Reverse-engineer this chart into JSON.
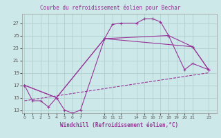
{
  "title": "Courbe du refroidissement éolien pour Bechar",
  "xlabel": "Windchill (Refroidissement éolien,°C)",
  "bg_color": "#cce8e8",
  "line_color": "#993399",
  "grid_color": "#aacccc",
  "line1_x": [
    0,
    1,
    2,
    3,
    4,
    5,
    6,
    7,
    10,
    11,
    12,
    14,
    15,
    16,
    17,
    18,
    20,
    21,
    23
  ],
  "line1_y": [
    17,
    14.5,
    14.5,
    13.5,
    15,
    13,
    12.5,
    13,
    24.5,
    26.8,
    27,
    27,
    27.7,
    27.7,
    27.2,
    25.0,
    19.5,
    20.5,
    19.5
  ],
  "line2_x": [
    0,
    4,
    10,
    18,
    21,
    23
  ],
  "line2_y": [
    17,
    15,
    24.5,
    25.0,
    23.2,
    19.5
  ],
  "line3_x": [
    0,
    4,
    10,
    21,
    23
  ],
  "line3_y": [
    17,
    15,
    24.5,
    23.2,
    19.5
  ],
  "line4_x": [
    0,
    23
  ],
  "line4_y": [
    14.5,
    19.0
  ],
  "ylim": [
    12.5,
    28.5
  ],
  "yticks": [
    13,
    15,
    17,
    19,
    21,
    23,
    25,
    27
  ],
  "xlim": [
    -0.3,
    24.0
  ],
  "xtick_positions": [
    0,
    1,
    2,
    3,
    4,
    5,
    6,
    7,
    10,
    11,
    12,
    14,
    15,
    16,
    17,
    18,
    19,
    20,
    21,
    23
  ],
  "xtick_labels": [
    "0",
    "1",
    "2",
    "3",
    "4",
    "5",
    "6",
    "7",
    "10",
    "11",
    "12",
    "14",
    "15",
    "16",
    "17",
    "18",
    "19",
    "20",
    "21",
    "23"
  ]
}
